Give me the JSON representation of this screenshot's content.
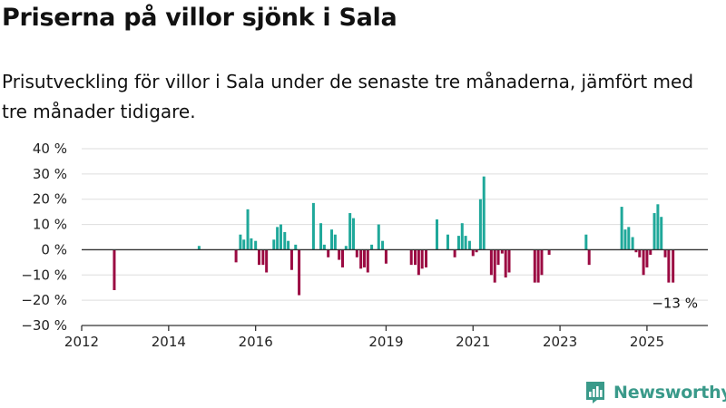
{
  "header": {
    "title": "Priserna på villor sjönk i Sala",
    "subtitle": "Prisutveckling för villor i Sala under de senaste tre månaderna, jämfört med tre månader tidigare."
  },
  "brand": {
    "name": "Newsworthy",
    "logo_icon": "chart-logo-icon"
  },
  "colors": {
    "positive": "#1fa89a",
    "negative": "#9b0a42",
    "grid": "#dddddd",
    "axis": "#333333",
    "brand": "#3a9a8a"
  },
  "chart_data": {
    "type": "bar",
    "title": "Priserna på villor sjönk i Sala",
    "subtitle": "Prisutveckling för villor i Sala under de senaste tre månaderna, jämfört med tre månader tidigare.",
    "xlabel": "",
    "ylabel": "",
    "x_unit": "year",
    "xlim": [
      2012,
      2026.4
    ],
    "ylim": [
      -30,
      40
    ],
    "y_ticks": [
      -30,
      -20,
      -10,
      0,
      10,
      20,
      30,
      40
    ],
    "y_tick_labels": [
      "−30 %",
      "−20 %",
      "−10 %",
      "0 %",
      "10 %",
      "20 %",
      "30 %",
      "40 %"
    ],
    "x_ticks": [
      2012,
      2014,
      2016,
      2019,
      2021,
      2023,
      2025
    ],
    "x_tick_labels": [
      "2012",
      "2014",
      "2016",
      "2019",
      "2021",
      "2023",
      "2025"
    ],
    "grid": true,
    "annotation": {
      "text": "−13 %",
      "x": 2025.6,
      "y": -13
    },
    "x": [
      2012.75,
      2014.7,
      2015.55,
      2015.65,
      2015.73,
      2015.82,
      2015.9,
      2016.0,
      2016.08,
      2016.17,
      2016.25,
      2016.42,
      2016.5,
      2016.58,
      2016.67,
      2016.75,
      2016.83,
      2016.92,
      2017.0,
      2017.33,
      2017.5,
      2017.58,
      2017.67,
      2017.75,
      2017.83,
      2017.92,
      2018.0,
      2018.08,
      2018.17,
      2018.25,
      2018.33,
      2018.42,
      2018.5,
      2018.58,
      2018.67,
      2018.83,
      2018.92,
      2019.0,
      2019.08,
      2019.58,
      2019.67,
      2019.75,
      2019.83,
      2019.92,
      2020.17,
      2020.42,
      2020.58,
      2020.67,
      2020.75,
      2020.83,
      2020.92,
      2021.0,
      2021.08,
      2021.17,
      2021.25,
      2021.42,
      2021.5,
      2021.58,
      2021.67,
      2021.75,
      2021.83,
      2022.42,
      2022.5,
      2022.58,
      2022.75,
      2023.6,
      2023.67,
      2024.42,
      2024.5,
      2024.58,
      2024.67,
      2024.75,
      2024.83,
      2024.92,
      2025.0,
      2025.08,
      2025.17,
      2025.25,
      2025.33,
      2025.42,
      2025.5,
      2025.6
    ],
    "values": [
      -16,
      1.5,
      -5,
      6,
      4,
      16,
      4.5,
      3.5,
      -6,
      -6,
      -9,
      4,
      9,
      10,
      7,
      3.5,
      -8,
      2,
      -18,
      18.5,
      10.5,
      2,
      -3,
      8,
      6,
      -4,
      -7,
      1.5,
      14.5,
      12.5,
      -3,
      -7.5,
      -7,
      -9,
      2,
      10,
      3.5,
      -5.5,
      0,
      -6,
      -6,
      -10,
      -7.5,
      -7,
      12,
      6,
      -3,
      5.5,
      10.5,
      5.5,
      3.5,
      -2.5,
      -1,
      20,
      29,
      -10,
      -13,
      -6,
      -1.5,
      -11,
      -9,
      -13,
      -13,
      -10,
      -2,
      6,
      -6,
      17,
      8,
      9,
      5,
      -1,
      -3,
      -10,
      -7,
      -2,
      14.5,
      18,
      13,
      -3,
      -13,
      -13
    ]
  }
}
